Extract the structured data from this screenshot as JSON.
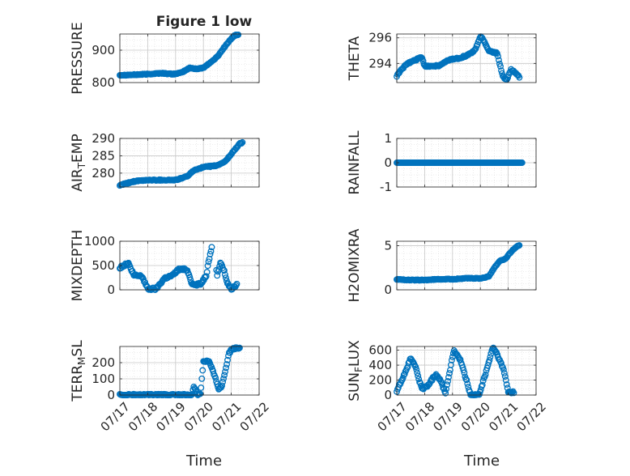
{
  "figure": {
    "title": "Figure 1 low",
    "marker_color": "#0072bd",
    "grid_color": "#c8c8c8",
    "axis_color": "#262626"
  },
  "x_tick_labels": [
    "07/17",
    "07/18",
    "07/19",
    "07/20",
    "07/21",
    "07/22"
  ],
  "chart_data": [
    {
      "type": "scatter",
      "ylabel": "PRESSURE",
      "xlim": [
        0,
        5
      ],
      "ylim": [
        800,
        950
      ],
      "yticks": [
        800,
        900
      ],
      "ytick_labels": [
        "800",
        "900"
      ],
      "grid": true,
      "minor_grid": true,
      "keys": [
        [
          0,
          823
        ],
        [
          0.5,
          824
        ],
        [
          1.0,
          826
        ],
        [
          1.5,
          829
        ],
        [
          1.9,
          826
        ],
        [
          2.2,
          830
        ],
        [
          2.5,
          845
        ],
        [
          2.8,
          842
        ],
        [
          3.0,
          846
        ],
        [
          3.3,
          865
        ],
        [
          3.5,
          880
        ],
        [
          3.8,
          915
        ],
        [
          4.1,
          945
        ],
        [
          4.25,
          948
        ]
      ],
      "gaps": [],
      "noise": 1.5
    },
    {
      "type": "scatter",
      "ylabel": "THETA",
      "xlim": [
        0,
        5
      ],
      "ylim": [
        292.5,
        296.3
      ],
      "yticks": [
        294,
        296
      ],
      "ytick_labels": [
        "294",
        "296"
      ],
      "grid": true,
      "minor_grid": true,
      "keys": [
        [
          0,
          293.0
        ],
        [
          0.15,
          293.5
        ],
        [
          0.4,
          294.0
        ],
        [
          0.7,
          294.3
        ],
        [
          0.9,
          294.5
        ],
        [
          1.0,
          293.8
        ],
        [
          1.5,
          293.8
        ],
        [
          1.9,
          294.3
        ],
        [
          2.2,
          294.4
        ],
        [
          2.5,
          294.6
        ],
        [
          2.8,
          295.0
        ],
        [
          3.0,
          296.1
        ],
        [
          3.1,
          295.9
        ],
        [
          3.3,
          295.0
        ],
        [
          3.6,
          294.8
        ],
        [
          3.8,
          293.0
        ],
        [
          3.95,
          292.7
        ],
        [
          4.1,
          293.5
        ],
        [
          4.3,
          293.2
        ],
        [
          4.4,
          292.9
        ]
      ],
      "gaps": [],
      "noise": 0.06
    },
    {
      "type": "scatter",
      "ylabel": "AIR_TEMP",
      "xlim": [
        0,
        5
      ],
      "ylim": [
        276,
        290
      ],
      "yticks": [
        280,
        285,
        290
      ],
      "ytick_labels": [
        "280",
        "285",
        "290"
      ],
      "grid": true,
      "minor_grid": true,
      "keys": [
        [
          0,
          276.5
        ],
        [
          0.5,
          277.6
        ],
        [
          1.0,
          278.0
        ],
        [
          1.5,
          278.0
        ],
        [
          2.0,
          278.0
        ],
        [
          2.4,
          279.0
        ],
        [
          2.7,
          281.0
        ],
        [
          3.0,
          281.7
        ],
        [
          3.5,
          282.2
        ],
        [
          3.8,
          283.5
        ],
        [
          4.0,
          285.5
        ],
        [
          4.3,
          288.5
        ],
        [
          4.4,
          288.8
        ]
      ],
      "gaps": [],
      "noise": 0.15
    },
    {
      "type": "scatter",
      "ylabel": "RAINFALL",
      "xlim": [
        0,
        5
      ],
      "ylim": [
        -1,
        1
      ],
      "yticks": [
        -1,
        0,
        1
      ],
      "ytick_labels": [
        "-1",
        "0",
        "1"
      ],
      "grid": true,
      "minor_grid": true,
      "keys": [
        [
          0,
          0
        ],
        [
          4.5,
          0
        ]
      ],
      "gaps": [],
      "noise": 0
    },
    {
      "type": "scatter",
      "ylabel": "MIXDEPTH",
      "xlim": [
        0,
        5
      ],
      "ylim": [
        0,
        1000
      ],
      "yticks": [
        0,
        500,
        1000
      ],
      "ytick_labels": [
        "0",
        "500",
        "1000"
      ],
      "grid": true,
      "minor_grid": true,
      "keys": [
        [
          0,
          450
        ],
        [
          0.3,
          550
        ],
        [
          0.5,
          300
        ],
        [
          0.8,
          280
        ],
        [
          1.0,
          20
        ],
        [
          1.3,
          20
        ],
        [
          1.6,
          240
        ],
        [
          1.9,
          300
        ],
        [
          2.1,
          420
        ],
        [
          2.4,
          420
        ],
        [
          2.5,
          300
        ],
        [
          2.6,
          100
        ],
        [
          2.9,
          120
        ],
        [
          3.1,
          300
        ],
        [
          3.3,
          900
        ],
        [
          3.5,
          300
        ],
        [
          3.6,
          550
        ],
        [
          3.75,
          400
        ],
        [
          3.85,
          150
        ],
        [
          4.0,
          20
        ],
        [
          4.2,
          100
        ]
      ],
      "gaps": [
        [
          3.3,
          3.45
        ]
      ],
      "noise": 25
    },
    {
      "type": "scatter",
      "ylabel": "H2OMIXRA",
      "xlim": [
        0,
        5
      ],
      "ylim": [
        0,
        5.5
      ],
      "yticks": [
        0,
        5
      ],
      "ytick_labels": [
        "0",
        "5"
      ],
      "grid": true,
      "minor_grid": true,
      "keys": [
        [
          0,
          1.2
        ],
        [
          0.5,
          1.1
        ],
        [
          1.0,
          1.1
        ],
        [
          1.5,
          1.2
        ],
        [
          2.0,
          1.2
        ],
        [
          2.5,
          1.3
        ],
        [
          3.0,
          1.3
        ],
        [
          3.3,
          1.5
        ],
        [
          3.5,
          2.5
        ],
        [
          3.7,
          3.3
        ],
        [
          3.9,
          3.5
        ],
        [
          4.1,
          4.3
        ],
        [
          4.3,
          4.9
        ],
        [
          4.4,
          5.0
        ]
      ],
      "gaps": [],
      "noise": 0.04
    },
    {
      "type": "scatter",
      "ylabel": "TERR_MSL",
      "xlim": [
        0,
        5
      ],
      "ylim": [
        0,
        300
      ],
      "yticks": [
        0,
        100,
        200
      ],
      "ytick_labels": [
        "0",
        "100",
        "200"
      ],
      "grid": true,
      "minor_grid": true,
      "keys": [
        [
          0,
          0
        ],
        [
          2.6,
          0
        ],
        [
          2.65,
          55
        ],
        [
          2.8,
          0
        ],
        [
          2.9,
          15
        ],
        [
          3.0,
          210
        ],
        [
          3.2,
          210
        ],
        [
          3.4,
          120
        ],
        [
          3.55,
          40
        ],
        [
          3.65,
          50
        ],
        [
          3.8,
          160
        ],
        [
          3.9,
          250
        ],
        [
          4.0,
          280
        ],
        [
          4.2,
          290
        ],
        [
          4.3,
          295
        ]
      ],
      "gaps": [],
      "noise": 6
    },
    {
      "type": "scatter",
      "ylabel": "SUN_FLUX",
      "xlim": [
        0,
        5
      ],
      "ylim": [
        0,
        650
      ],
      "yticks": [
        0,
        200,
        400,
        600
      ],
      "ytick_labels": [
        "0",
        "200",
        "400",
        "600"
      ],
      "grid": true,
      "minor_grid": true,
      "keys": [
        [
          0,
          60
        ],
        [
          0.3,
          300
        ],
        [
          0.5,
          490
        ],
        [
          0.65,
          400
        ],
        [
          0.9,
          80
        ],
        [
          1.1,
          120
        ],
        [
          1.4,
          280
        ],
        [
          1.55,
          210
        ],
        [
          1.75,
          30
        ],
        [
          2.05,
          600
        ],
        [
          2.3,
          450
        ],
        [
          2.5,
          200
        ],
        [
          2.65,
          0
        ],
        [
          2.95,
          0
        ],
        [
          3.2,
          300
        ],
        [
          3.45,
          640
        ],
        [
          3.6,
          550
        ],
        [
          3.85,
          320
        ],
        [
          4.0,
          40
        ],
        [
          4.2,
          40
        ]
      ],
      "gaps": [],
      "noise": 15
    }
  ],
  "xlabel": "Time"
}
